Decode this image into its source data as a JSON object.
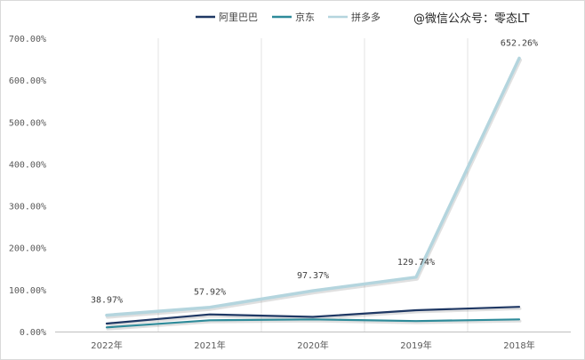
{
  "chart_data": {
    "type": "line",
    "categories": [
      "2022年",
      "2021年",
      "2020年",
      "2019年",
      "2018年"
    ],
    "y_ticks": [
      "0.00%",
      "100.00%",
      "200.00%",
      "300.00%",
      "400.00%",
      "500.00%",
      "600.00%",
      "700.00%"
    ],
    "ylim": [
      0,
      700
    ],
    "grid": {
      "horizontal": false,
      "vertical": true
    },
    "legend_position": "top",
    "series": [
      {
        "name": "阿里巴巴",
        "color": "#1f3864",
        "values": [
          19,
          41,
          35,
          51,
          59
        ],
        "data_labels": []
      },
      {
        "name": "京东",
        "color": "#2e8b9a",
        "values": [
          10,
          27,
          29,
          25,
          29
        ],
        "data_labels": []
      },
      {
        "name": "拼多多",
        "color": "#b4d5de",
        "values": [
          38.97,
          57.92,
          97.37,
          129.74,
          652.26
        ],
        "data_labels": [
          "38.97%",
          "57.92%",
          "97.37%",
          "129.74%",
          "652.26%"
        ]
      }
    ]
  },
  "watermark": "@微信公众号：零态LT"
}
